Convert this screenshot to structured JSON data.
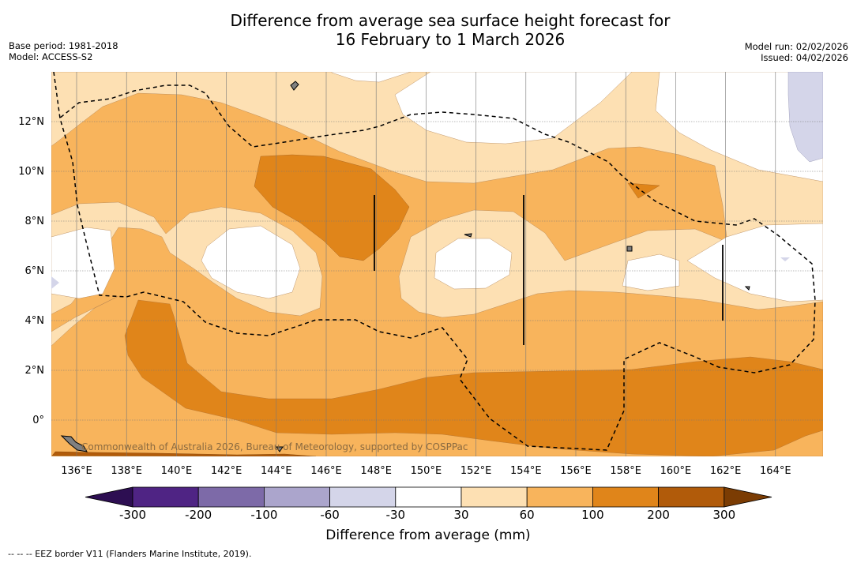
{
  "title": {
    "line1": "Difference from average sea surface height forecast for",
    "line2": "16 February to 1 March 2026"
  },
  "meta": {
    "base_period": "Base period: 1981-2018",
    "model": "Model: ACCESS-S2",
    "model_run": "Model run: 02/02/2026",
    "issued": "Issued: 04/02/2026"
  },
  "map": {
    "lon_labels": [
      "136°E",
      "138°E",
      "140°E",
      "142°E",
      "144°E",
      "146°E",
      "148°E",
      "150°E",
      "152°E",
      "154°E",
      "156°E",
      "158°E",
      "160°E",
      "162°E",
      "164°E"
    ],
    "lat_labels": [
      "12°N",
      "10°N",
      "8°N",
      "6°N",
      "4°N",
      "2°N",
      "0°"
    ],
    "copyright": "Commonwealth of Australia 2026, Bureau of Meteorology, supported by COSPPac",
    "land_color": "#808080",
    "eez_color": "#000000"
  },
  "colorbar": {
    "title": "Difference from average (mm)",
    "ticks": [
      "-300",
      "-200",
      "-100",
      "-60",
      "-30",
      "30",
      "60",
      "100",
      "200",
      "300"
    ],
    "colors": {
      "below_min": "#2d0e52",
      "bins": [
        "#4f2484",
        "#7d6aa8",
        "#aba5cc",
        "#d4d5e9",
        "#ffffff",
        "#fde0b3",
        "#f8b45c",
        "#e0851a",
        "#b15b0a"
      ],
      "above_max": "#7b3c03"
    }
  },
  "footnote": "-- -- -- EEZ border V11 (Flanders Marine Institute, 2019)."
}
